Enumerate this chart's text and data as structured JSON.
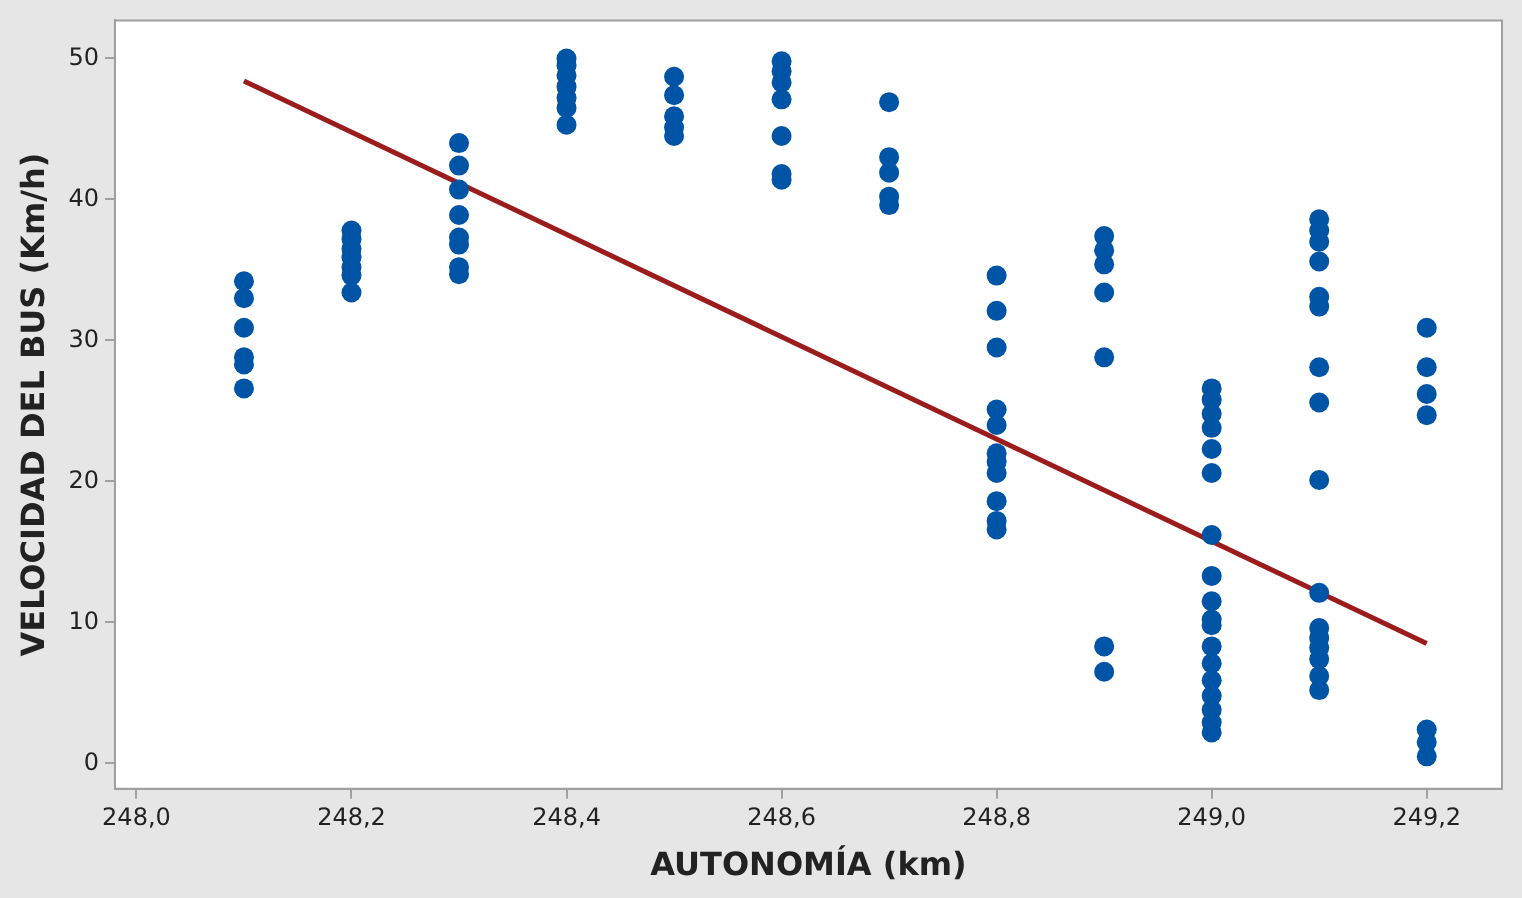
{
  "chart_data": {
    "type": "scatter",
    "xlabel": "AUTONOMÍA (km)",
    "ylabel": "VELOCIDAD DEL BUS (Km/h)",
    "xlim": [
      247.98,
      249.27
    ],
    "ylim": [
      -1.8,
      52.7
    ],
    "xticks": [
      {
        "value": 248.0,
        "label": "248,0"
      },
      {
        "value": 248.2,
        "label": "248,2"
      },
      {
        "value": 248.4,
        "label": "248,4"
      },
      {
        "value": 248.6,
        "label": "248,6"
      },
      {
        "value": 248.8,
        "label": "248,8"
      },
      {
        "value": 249.0,
        "label": "249,0"
      },
      {
        "value": 249.2,
        "label": "249,2"
      }
    ],
    "yticks": [
      0,
      10,
      20,
      30,
      40,
      50
    ],
    "grid": false,
    "legend": false,
    "marker": "circle",
    "series": [
      {
        "color": "#0054a6",
        "x": [
          248.1,
          248.1,
          248.1,
          248.1,
          248.1,
          248.1,
          248.2,
          248.2,
          248.2,
          248.2,
          248.2,
          248.2,
          248.2,
          248.3,
          248.3,
          248.3,
          248.3,
          248.3,
          248.3,
          248.3,
          248.3,
          248.4,
          248.4,
          248.4,
          248.4,
          248.4,
          248.4,
          248.4,
          248.5,
          248.5,
          248.5,
          248.5,
          248.5,
          248.6,
          248.6,
          248.6,
          248.6,
          248.6,
          248.6,
          248.6,
          248.7,
          248.7,
          248.7,
          248.7,
          248.7,
          248.8,
          248.8,
          248.8,
          248.8,
          248.8,
          248.8,
          248.8,
          248.8,
          248.8,
          248.8,
          248.8,
          248.9,
          248.9,
          248.9,
          248.9,
          248.9,
          248.9,
          248.9,
          249.0,
          249.0,
          249.0,
          249.0,
          249.0,
          249.0,
          249.0,
          249.0,
          249.0,
          249.0,
          249.0,
          249.0,
          249.0,
          249.0,
          249.0,
          249.0,
          249.0,
          249.0,
          249.1,
          249.1,
          249.1,
          249.1,
          249.1,
          249.1,
          249.1,
          249.1,
          249.1,
          249.1,
          249.1,
          249.1,
          249.1,
          249.1,
          249.1,
          249.1,
          249.2,
          249.2,
          249.2,
          249.2,
          249.2,
          249.2,
          249.2
        ],
        "values": [
          34.2,
          33.0,
          30.9,
          28.8,
          28.3,
          26.6,
          37.8,
          37.2,
          36.5,
          35.9,
          35.2,
          34.6,
          33.4,
          44.0,
          42.4,
          40.7,
          38.9,
          37.3,
          36.8,
          35.2,
          34.7,
          50.0,
          49.5,
          48.8,
          48.0,
          47.2,
          46.5,
          45.3,
          48.7,
          47.4,
          45.9,
          45.1,
          44.5,
          49.8,
          49.1,
          48.3,
          47.1,
          44.5,
          41.8,
          41.4,
          46.9,
          43.0,
          41.9,
          40.2,
          39.6,
          34.6,
          32.1,
          29.5,
          25.1,
          24.0,
          22.0,
          21.4,
          20.6,
          18.6,
          17.2,
          16.6,
          37.4,
          36.4,
          35.4,
          33.4,
          28.8,
          8.3,
          6.5,
          26.6,
          25.8,
          24.8,
          23.8,
          22.3,
          20.6,
          16.2,
          13.3,
          11.5,
          10.2,
          9.8,
          8.3,
          7.1,
          5.9,
          4.8,
          3.8,
          2.9,
          2.2,
          38.6,
          37.8,
          37.0,
          35.6,
          33.1,
          32.4,
          28.1,
          25.6,
          20.1,
          12.1,
          9.6,
          8.9,
          8.2,
          7.4,
          6.2,
          5.2,
          30.9,
          28.1,
          26.2,
          24.7,
          2.4,
          1.5,
          0.5
        ]
      },
      {
        "type": "line",
        "color": "#9b1c1c",
        "marker": "none",
        "x": [
          248.1,
          249.2
        ],
        "values": [
          48.4,
          8.5
        ]
      }
    ]
  }
}
